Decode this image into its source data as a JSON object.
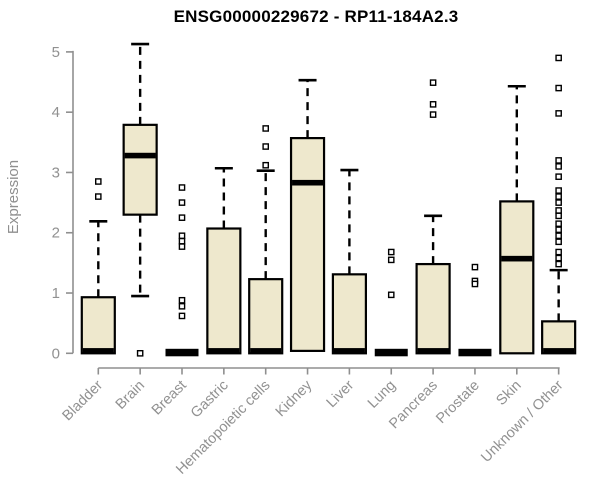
{
  "chart_data": {
    "type": "boxplot",
    "title": "ENSG00000229672 - RP11-184A2.3",
    "ylabel": "Expression",
    "xlabel": "",
    "ylim": [
      0,
      5
    ],
    "yticks": [
      0,
      1,
      2,
      3,
      4,
      5
    ],
    "grid": false,
    "legend": "none",
    "outlier_marker": "open-square",
    "colors": {
      "box_fill": "#EEE8CD",
      "box_border": "#000000",
      "median": "#000000",
      "whisker": "#000000",
      "axis": "#8F8F8F",
      "tick_label": "#919191",
      "title": "#000000"
    },
    "categories": [
      "Bladder",
      "Brain",
      "Breast",
      "Gastric",
      "Hematopoietic cells",
      "Kidney",
      "Liver",
      "Lung",
      "Pancreas",
      "Prostate",
      "Skin",
      "Unknown / Other"
    ],
    "series": [
      {
        "name": "Bladder",
        "q1": 0,
        "median": 0.04,
        "q3": 0.93,
        "whisker_low": 0,
        "whisker_high": 2.19,
        "outliers": [
          2.85,
          2.6
        ]
      },
      {
        "name": "Brain",
        "q1": 2.3,
        "median": 3.28,
        "q3": 3.79,
        "whisker_low": 0.95,
        "whisker_high": 5.13,
        "outliers": [
          0
        ]
      },
      {
        "name": "Breast",
        "q1": 0,
        "median": 0,
        "q3": 0,
        "whisker_low": 0,
        "whisker_high": 0,
        "outliers": [
          2.75,
          2.5,
          2.25,
          1.95,
          1.86,
          1.77,
          0.88,
          0.78,
          0.62
        ]
      },
      {
        "name": "Gastric",
        "q1": 0,
        "median": 0.04,
        "q3": 2.07,
        "whisker_low": 0,
        "whisker_high": 3.07,
        "outliers": []
      },
      {
        "name": "Hematopoietic cells",
        "q1": 0,
        "median": 0.04,
        "q3": 1.23,
        "whisker_low": 0,
        "whisker_high": 3.03,
        "outliers": [
          3.73,
          3.43,
          3.12
        ]
      },
      {
        "name": "Kidney",
        "q1": 0.04,
        "median": 2.83,
        "q3": 3.57,
        "whisker_low": 0.04,
        "whisker_high": 4.53,
        "outliers": []
      },
      {
        "name": "Liver",
        "q1": 0,
        "median": 0.04,
        "q3": 1.31,
        "whisker_low": 0,
        "whisker_high": 3.04,
        "outliers": []
      },
      {
        "name": "Lung",
        "q1": 0,
        "median": 0,
        "q3": 0,
        "whisker_low": 0,
        "whisker_high": 0,
        "outliers": [
          1.68,
          1.55,
          0.97
        ]
      },
      {
        "name": "Pancreas",
        "q1": 0,
        "median": 0.04,
        "q3": 1.48,
        "whisker_low": 0,
        "whisker_high": 2.28,
        "outliers": [
          4.49,
          4.13,
          3.96
        ]
      },
      {
        "name": "Prostate",
        "q1": 0,
        "median": 0,
        "q3": 0,
        "whisker_low": 0,
        "whisker_high": 0,
        "outliers": [
          1.43,
          1.2,
          1.15
        ]
      },
      {
        "name": "Skin",
        "q1": 0,
        "median": 1.57,
        "q3": 2.52,
        "whisker_low": 0,
        "whisker_high": 4.43,
        "outliers": []
      },
      {
        "name": "Unknown / Other",
        "q1": 0,
        "median": 0.04,
        "q3": 0.53,
        "whisker_low": 0,
        "whisker_high": 1.38,
        "outliers": [
          4.9,
          4.4,
          3.98,
          3.2,
          3.1,
          2.93,
          2.7,
          2.6,
          2.5,
          2.37,
          2.28,
          2.15,
          2.05,
          1.95,
          1.85,
          1.68,
          1.58,
          1.48
        ]
      }
    ]
  }
}
